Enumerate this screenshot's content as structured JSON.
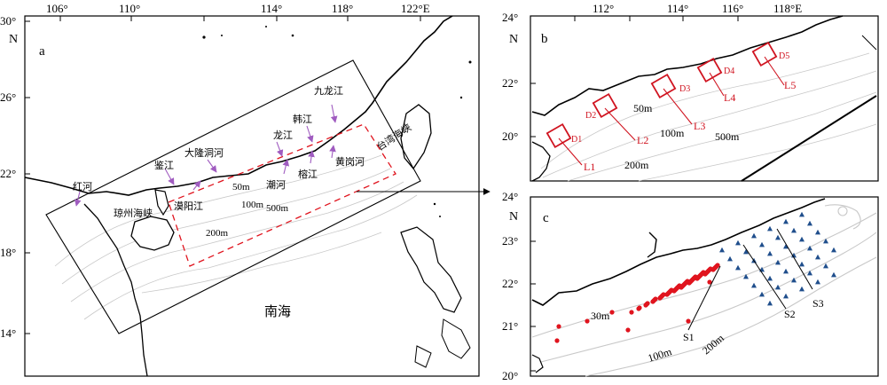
{
  "panel_a": {
    "panel_letter": "a",
    "north": "N",
    "lon_ticks": [
      "106°",
      "110°",
      "114°",
      "118°",
      "122°E"
    ],
    "lat_ticks": [
      "30°",
      "26°",
      "22°",
      "18°",
      "14°"
    ],
    "rivers": [
      "红河",
      "鉴江",
      "大隆洞河",
      "龙江",
      "韩江",
      "九龙江",
      "漠阳江",
      "潮河",
      "榕江",
      "黄岗河"
    ],
    "places": [
      "琼州海峡",
      "台湾海峡",
      "南海"
    ],
    "isobaths": [
      "50m",
      "100m",
      "200m",
      "500m"
    ]
  },
  "panel_b": {
    "panel_letter": "b",
    "north": "N",
    "lon_ticks": [
      "112°",
      "114°",
      "116°",
      "118°E"
    ],
    "lat_ticks": [
      "24°",
      "22°",
      "20°"
    ],
    "boxes": [
      "D1",
      "D2",
      "D3",
      "D4",
      "D5"
    ],
    "lines": [
      "L1",
      "L2",
      "L3",
      "L4",
      "L5"
    ],
    "isobaths": [
      "50m",
      "100m",
      "200m",
      "500m"
    ]
  },
  "panel_c": {
    "panel_letter": "c",
    "north": "N",
    "lat_ticks": [
      "24°",
      "23°",
      "22°",
      "21°",
      "20°"
    ],
    "sections": [
      "S1",
      "S2",
      "S3"
    ],
    "isobaths": [
      "30m",
      "100m",
      "200m"
    ]
  },
  "colors": {
    "frame": "#000000",
    "red_mark": "#e0141e",
    "blue_mark": "#1f4e8c",
    "river_arrow": "#a05cc0",
    "contour": "#bdbdbd"
  }
}
